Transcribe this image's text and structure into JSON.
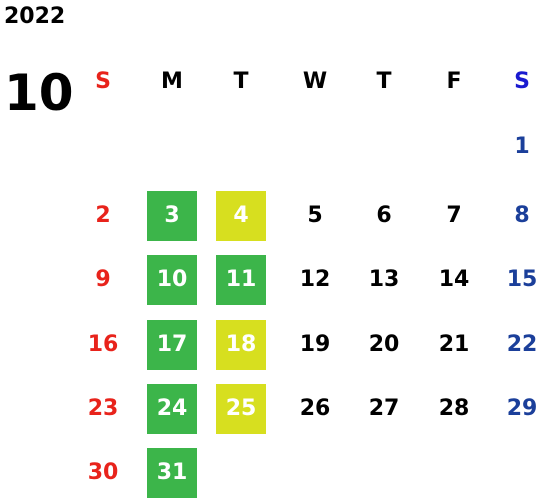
{
  "calendar": {
    "year": "2022",
    "month": "10",
    "weekdays": [
      "S",
      "M",
      "T",
      "W",
      "T",
      "F",
      "S"
    ],
    "colors": {
      "sunday": "#e8231b",
      "saturday": "#1b3f9a",
      "highlight_green": "#3cb54a",
      "highlight_yellow": "#d7df1f"
    },
    "weeks": [
      [
        null,
        null,
        null,
        null,
        null,
        null,
        "1"
      ],
      [
        "2",
        "3",
        "4",
        "5",
        "6",
        "7",
        "8"
      ],
      [
        "9",
        "10",
        "11",
        "12",
        "13",
        "14",
        "15"
      ],
      [
        "16",
        "17",
        "18",
        "19",
        "20",
        "21",
        "22"
      ],
      [
        "23",
        "24",
        "25",
        "26",
        "27",
        "28",
        "29"
      ],
      [
        "30",
        "31",
        null,
        null,
        null,
        null,
        null
      ]
    ],
    "highlights": {
      "3": "green",
      "4": "yellow",
      "10": "green",
      "11": "green",
      "17": "green",
      "18": "yellow",
      "24": "green",
      "25": "yellow",
      "31": "green"
    }
  }
}
